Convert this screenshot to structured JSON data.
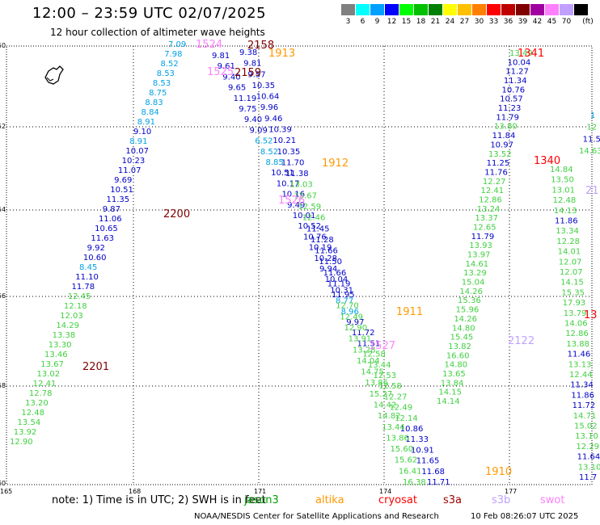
{
  "title": "12:00 – 23:59 UTC 02/07/2025",
  "subtitle": "12 hour collection of altimeter wave heights",
  "legend": {
    "unit": "(ft)",
    "items": [
      {
        "label": "3",
        "color": "#808080"
      },
      {
        "label": "6",
        "color": "#00ffff"
      },
      {
        "label": "9",
        "color": "#00a0ff"
      },
      {
        "label": "12",
        "color": "#0000ff"
      },
      {
        "label": "15",
        "color": "#00ff00"
      },
      {
        "label": "18",
        "color": "#00c000"
      },
      {
        "label": "21",
        "color": "#008000"
      },
      {
        "label": "24",
        "color": "#ffff00"
      },
      {
        "label": "27",
        "color": "#ffc000"
      },
      {
        "label": "30",
        "color": "#ff8000"
      },
      {
        "label": "33",
        "color": "#ff0000"
      },
      {
        "label": "36",
        "color": "#c00000"
      },
      {
        "label": "39",
        "color": "#800000"
      },
      {
        "label": "42",
        "color": "#a000a0"
      },
      {
        "label": "45",
        "color": "#ff80ff"
      },
      {
        "label": "70",
        "color": "#c0a0ff"
      },
      {
        "label": "",
        "color": "#000000"
      }
    ]
  },
  "axes": {
    "x_ticks": [
      "165",
      "168",
      "171",
      "174",
      "177"
    ],
    "y_ticks": [
      "-50",
      "-52",
      "-54",
      "-56",
      "-58",
      "-60"
    ]
  },
  "note": "note:  1) Time is in UTC;  2) SWH is in feet",
  "satellites": [
    {
      "name": "jason3",
      "color": "#00a000"
    },
    {
      "name": "altika",
      "color": "#ff9900"
    },
    {
      "name": "cryosat",
      "color": "#ff0000"
    },
    {
      "name": "s3a",
      "color": "#a00000"
    },
    {
      "name": "s3b",
      "color": "#c0a0ff"
    },
    {
      "name": "swot",
      "color": "#ff80ff"
    }
  ],
  "footer": "NOAA/NESDIS Center for Satellite Applications and Research",
  "footer_time": "10 Feb 08:26:07 UTC 2025",
  "palette": {
    "blue": "#0000c8",
    "cyan": "#00a0e0",
    "green": "#40d040",
    "lime": "#20e020",
    "darkblue": "#000080"
  },
  "track_labels": [
    {
      "t": "1524",
      "c": "#ff80ff"
    },
    {
      "t": "2158",
      "c": "#800000"
    },
    {
      "t": "1913",
      "c": "#ff9900"
    },
    {
      "t": "2159",
      "c": "#800000"
    },
    {
      "t": "1525",
      "c": "#ff80ff"
    },
    {
      "t": "2200",
      "c": "#800000"
    },
    {
      "t": "1912",
      "c": "#ff9900"
    },
    {
      "t": "1526",
      "c": "#ff80ff"
    },
    {
      "t": "2201",
      "c": "#800000"
    },
    {
      "t": "1911",
      "c": "#ff9900"
    },
    {
      "t": "1527",
      "c": "#ff80ff"
    },
    {
      "t": "1910",
      "c": "#ff9900"
    },
    {
      "t": "2122",
      "c": "#c0a0ff"
    },
    {
      "t": "1341",
      "c": "#ff0000"
    },
    {
      "t": "1340",
      "c": "#ff0000"
    },
    {
      "t": "13",
      "c": "#ff0000"
    },
    {
      "t": "21",
      "c": "#c0a0ff"
    }
  ],
  "tracks": {
    "a": [
      "7.09",
      "7.98",
      "8.52",
      "8.53",
      "8.53",
      "8.75",
      "8.83",
      "8.84",
      "8.91",
      "9.10",
      "8.91",
      "10.07",
      "10.23",
      "11.07",
      "9.69",
      "10.51",
      "11.35",
      "9.87",
      "11.06",
      "10.65",
      "11.63",
      "9.92",
      "10.60",
      "8.45",
      "11.10",
      "11.78",
      "12.45",
      "12.18",
      "12.03",
      "14.29",
      "13.38",
      "13.30",
      "13.46",
      "13.67",
      "13.02",
      "12.41",
      "12.78",
      "13.20",
      "12.48",
      "13.54",
      "13.92",
      "12.90"
    ],
    "b": [
      "9.81",
      "9.61",
      "9.40",
      "9.65",
      "11.19",
      "9.75",
      "9.40",
      "9.09",
      "6.52",
      "8.52",
      "8.85",
      "10.51",
      "10.17",
      "10.16",
      "9.49",
      "10.01",
      "10.52",
      "10.76",
      "10.19",
      "10.28",
      "9.94",
      "10.04",
      "10.31",
      "8.77",
      "8.96",
      "9.97",
      "11.72",
      "11.51",
      "12.58",
      "13.44",
      "12.53",
      "12.58",
      "12.27",
      "12.49",
      "12.14",
      "10.86",
      "11.33",
      "10.91",
      "11.65",
      "11.68",
      "11.71"
    ],
    "c": [
      "9.38",
      "9.81",
      "9.57",
      "10.35",
      "10.64",
      "9.96",
      "9.46",
      "10.39",
      "10.21",
      "10.35",
      "11.70",
      "11.38",
      "13.03",
      "13.67",
      "12.59",
      "12.46",
      "11.45",
      "11.28",
      "11.66",
      "11.50",
      "11.66",
      "11.19",
      "11.95",
      "12.70",
      "12.49",
      "12.90",
      "13.91",
      "13.28",
      "14.04",
      "14.75",
      "13.86",
      "15.27",
      "14.42",
      "14.82",
      "13.44",
      "13.86",
      "15.60",
      "15.62",
      "16.41",
      "16.38"
    ],
    "d": [
      "14.14",
      "14.15",
      "13.84",
      "13.65",
      "14.80",
      "16.60",
      "13.82",
      "15.45",
      "14.80",
      "14.26",
      "15.96",
      "15.36",
      "14.26",
      "15.04",
      "13.29",
      "14.61",
      "13.97",
      "13.93",
      "11.79",
      "12.65",
      "13.37",
      "13.24",
      "12.86",
      "12.41",
      "12.27",
      "11.76",
      "11.25",
      "13.52",
      "10.97",
      "11.84",
      "13.80",
      "11.79",
      "11.23",
      "10.57",
      "10.76",
      "11.34",
      "11.27",
      "10.04",
      "13.49"
    ],
    "e": [
      "14.84",
      "13.50",
      "13.01",
      "12.48",
      "14.13",
      "11.86",
      "13.34",
      "12.28",
      "14.01",
      "12.07",
      "12.07",
      "14.15",
      "15.35",
      "17.93",
      "13.79",
      "14.06",
      "12.86",
      "13.88",
      "11.46",
      "13.13",
      "12.44",
      "11.34",
      "11.86",
      "11.72",
      "14.71",
      "15.02",
      "13.10",
      "12.29",
      "11.64",
      "13.10",
      "11.7"
    ],
    "f": [
      "1",
      "12",
      "11.5",
      "14.63"
    ]
  }
}
